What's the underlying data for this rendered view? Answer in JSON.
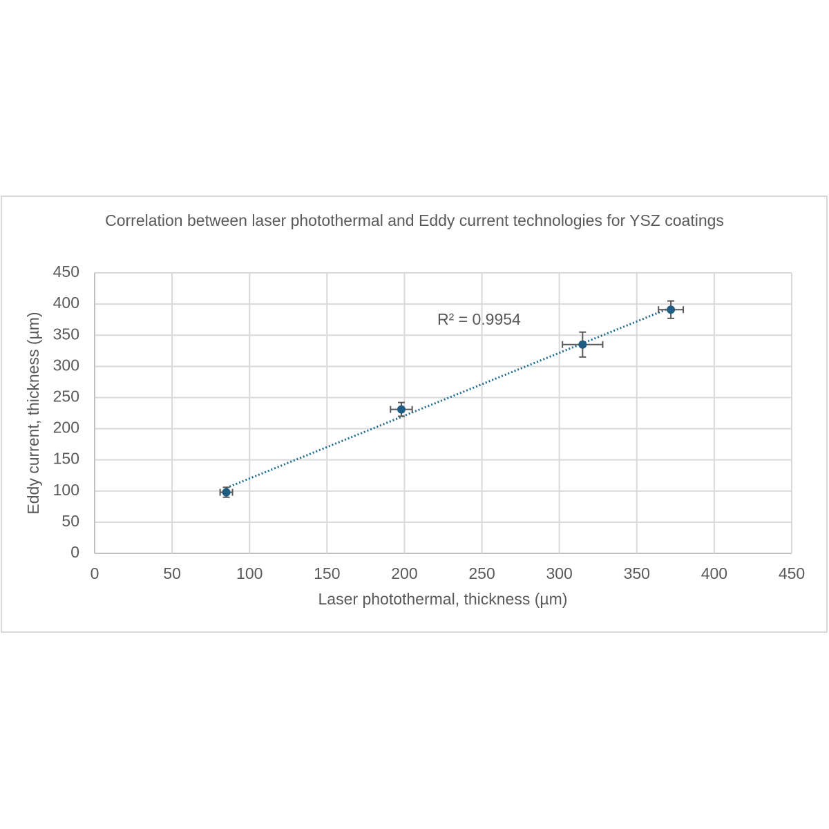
{
  "chart_data": {
    "type": "scatter",
    "title": "Correlation between laser photothermal and Eddy current technologies for YSZ coatings",
    "x_label": "Laser photothermal, thickness (µm)",
    "y_label": "Eddy current, thickness (µm)",
    "x": [
      85,
      198,
      315,
      372
    ],
    "values": [
      98,
      231,
      335,
      391
    ],
    "x_err": [
      4,
      7,
      13,
      8
    ],
    "y_err": [
      8,
      11,
      20,
      14
    ],
    "color": "#1f5c82",
    "error_color": "#595959",
    "trendline": "linear",
    "trendline_color": "#1f6b8f",
    "annotation": "R² = 0.9954",
    "xlim": [
      0,
      450
    ],
    "xticks": [
      0,
      50,
      100,
      150,
      200,
      250,
      300,
      350,
      400,
      450
    ],
    "ylim": [
      0,
      450
    ],
    "yticks": [
      0,
      50,
      100,
      150,
      200,
      250,
      300,
      350,
      400,
      450
    ],
    "grid": true
  }
}
